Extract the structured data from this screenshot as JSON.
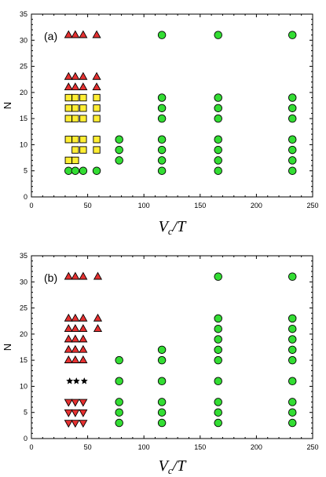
{
  "chart_data": [
    {
      "type": "scatter",
      "panel_label": "(a)",
      "xlabel": "V_c/T",
      "ylabel": "N",
      "xlim": [
        0,
        250
      ],
      "ylim": [
        0,
        35
      ],
      "xticks": [
        "0",
        "50",
        "100",
        "150",
        "200",
        "250"
      ],
      "yticks": [
        "0",
        "5",
        "10",
        "15",
        "20",
        "25",
        "30",
        "35"
      ],
      "grid": false,
      "series": [
        {
          "marker": "triangle-up",
          "color": "#e53030",
          "points": [
            [
              33,
              31
            ],
            [
              39,
              31
            ],
            [
              46,
              31
            ],
            [
              58,
              31
            ],
            [
              33,
              23
            ],
            [
              39,
              23
            ],
            [
              46,
              23
            ],
            [
              58,
              23
            ],
            [
              33,
              21
            ],
            [
              39,
              21
            ],
            [
              46,
              21
            ],
            [
              58,
              21
            ]
          ]
        },
        {
          "marker": "square",
          "color": "#ffee33",
          "points": [
            [
              33,
              19
            ],
            [
              39,
              19
            ],
            [
              46,
              19
            ],
            [
              58,
              19
            ],
            [
              33,
              17
            ],
            [
              39,
              17
            ],
            [
              46,
              17
            ],
            [
              58,
              17
            ],
            [
              33,
              15
            ],
            [
              39,
              15
            ],
            [
              46,
              15
            ],
            [
              58,
              15
            ],
            [
              33,
              11
            ],
            [
              39,
              11
            ],
            [
              46,
              11
            ],
            [
              58,
              11
            ],
            [
              39,
              9
            ],
            [
              46,
              9
            ],
            [
              58,
              9
            ],
            [
              33,
              7
            ],
            [
              39,
              7
            ]
          ]
        },
        {
          "marker": "circle",
          "color": "#33dd33",
          "points": [
            [
              33,
              5
            ],
            [
              39,
              5
            ],
            [
              46,
              5
            ],
            [
              58,
              5
            ],
            [
              78,
              11
            ],
            [
              78,
              9
            ],
            [
              78,
              7
            ],
            [
              116,
              31
            ],
            [
              116,
              19
            ],
            [
              116,
              17
            ],
            [
              116,
              15
            ],
            [
              116,
              11
            ],
            [
              116,
              9
            ],
            [
              116,
              7
            ],
            [
              116,
              5
            ],
            [
              166,
              31
            ],
            [
              166,
              19
            ],
            [
              166,
              17
            ],
            [
              166,
              15
            ],
            [
              166,
              11
            ],
            [
              166,
              9
            ],
            [
              166,
              7
            ],
            [
              166,
              5
            ],
            [
              232,
              31
            ],
            [
              232,
              19
            ],
            [
              232,
              17
            ],
            [
              232,
              15
            ],
            [
              232,
              11
            ],
            [
              232,
              9
            ],
            [
              232,
              7
            ],
            [
              232,
              5
            ]
          ]
        }
      ]
    },
    {
      "type": "scatter",
      "panel_label": "(b)",
      "xlabel": "V_c/T",
      "ylabel": "N",
      "xlim": [
        0,
        250
      ],
      "ylim": [
        0,
        35
      ],
      "xticks": [
        "0",
        "50",
        "100",
        "150",
        "200",
        "250"
      ],
      "yticks": [
        "0",
        "5",
        "10",
        "15",
        "20",
        "25",
        "30",
        "35"
      ],
      "grid": false,
      "series": [
        {
          "marker": "triangle-up",
          "color": "#e53030",
          "points": [
            [
              33,
              31
            ],
            [
              39,
              31
            ],
            [
              46,
              31
            ],
            [
              59,
              31
            ],
            [
              33,
              23
            ],
            [
              39,
              23
            ],
            [
              46,
              23
            ],
            [
              59,
              23
            ],
            [
              33,
              21
            ],
            [
              39,
              21
            ],
            [
              46,
              21
            ],
            [
              59,
              21
            ],
            [
              33,
              19
            ],
            [
              39,
              19
            ],
            [
              46,
              19
            ],
            [
              33,
              17
            ],
            [
              39,
              17
            ],
            [
              46,
              17
            ],
            [
              33,
              15
            ],
            [
              39,
              15
            ],
            [
              46,
              15
            ]
          ]
        },
        {
          "marker": "star",
          "color": "#000000",
          "points": [
            [
              34,
              11
            ],
            [
              40,
              11
            ],
            [
              47,
              11
            ]
          ]
        },
        {
          "marker": "triangle-down",
          "color": "#e53030",
          "points": [
            [
              33,
              7
            ],
            [
              39,
              7
            ],
            [
              46,
              7
            ],
            [
              33,
              5
            ],
            [
              39,
              5
            ],
            [
              46,
              5
            ],
            [
              33,
              3
            ],
            [
              39,
              3
            ],
            [
              46,
              3
            ]
          ]
        },
        {
          "marker": "circle",
          "color": "#33dd33",
          "points": [
            [
              78,
              15
            ],
            [
              78,
              11
            ],
            [
              78,
              7
            ],
            [
              78,
              5
            ],
            [
              78,
              3
            ],
            [
              116,
              17
            ],
            [
              116,
              15
            ],
            [
              116,
              11
            ],
            [
              116,
              7
            ],
            [
              116,
              5
            ],
            [
              116,
              3
            ],
            [
              166,
              31
            ],
            [
              166,
              23
            ],
            [
              166,
              21
            ],
            [
              166,
              19
            ],
            [
              166,
              17
            ],
            [
              166,
              15
            ],
            [
              166,
              11
            ],
            [
              166,
              7
            ],
            [
              166,
              5
            ],
            [
              166,
              3
            ],
            [
              232,
              31
            ],
            [
              232,
              23
            ],
            [
              232,
              21
            ],
            [
              232,
              19
            ],
            [
              232,
              17
            ],
            [
              232,
              15
            ],
            [
              232,
              11
            ],
            [
              232,
              7
            ],
            [
              232,
              5
            ],
            [
              232,
              3
            ]
          ]
        }
      ]
    }
  ]
}
